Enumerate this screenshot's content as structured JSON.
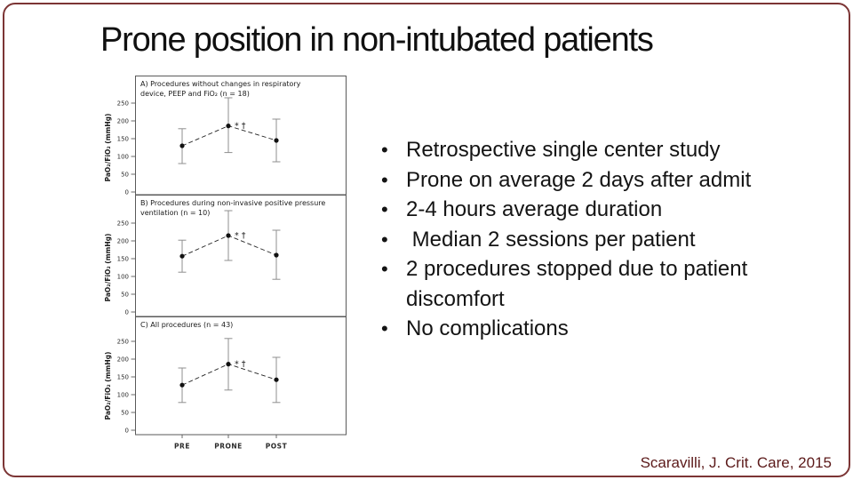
{
  "slide": {
    "title": "Prone position in non-intubated patients",
    "citation": "Scaravilli, J. Crit. Care, 2015",
    "accent_color": "#7c3535",
    "bullet_char": "•"
  },
  "bullets": [
    "Retrospective single center study",
    "Prone on average 2 days after admit",
    "2-4 hours average duration",
    " Median 2 sessions per patient",
    "2 procedures stopped due to patient discomfort",
    "No complications"
  ],
  "chart_data": [
    {
      "type": "line",
      "panel": "A",
      "title_lines": [
        "A) Procedures without changes in respiratory",
        "device, PEEP and FiO₂ (n = 18)"
      ],
      "ylabel": "PaO₂/FiO₂ (mmHg)",
      "categories": [
        "PRE",
        "PRONE",
        "POST"
      ],
      "series": [
        {
          "name": "PaO2/FiO2 mean",
          "values": [
            130,
            186,
            145
          ]
        }
      ],
      "ci_low": [
        80,
        111,
        85
      ],
      "ci_high": [
        178,
        265,
        205
      ],
      "annotation": "* †",
      "annotation_category": "PRONE",
      "ylim": [
        0,
        250
      ],
      "yticks": [
        0,
        50,
        100,
        150,
        200,
        250
      ],
      "grid": false,
      "legend": "none",
      "show_x_labels": false
    },
    {
      "type": "line",
      "panel": "B",
      "title_lines": [
        "B) Procedures during non-invasive positive pressure",
        "ventilation (n = 10)"
      ],
      "ylabel": "PaO₂/FiO₂ (mmHg)",
      "categories": [
        "PRE",
        "PRONE",
        "POST"
      ],
      "series": [
        {
          "name": "PaO2/FiO2 mean",
          "values": [
            157,
            215,
            160
          ]
        }
      ],
      "ci_low": [
        112,
        145,
        92
      ],
      "ci_high": [
        202,
        285,
        230
      ],
      "annotation": "* †",
      "annotation_category": "PRONE",
      "ylim": [
        0,
        250
      ],
      "yticks": [
        0,
        50,
        100,
        150,
        200,
        250
      ],
      "grid": false,
      "legend": "none",
      "show_x_labels": false
    },
    {
      "type": "line",
      "panel": "C",
      "title_lines": [
        "C) All procedures (n = 43)"
      ],
      "ylabel": "PaO₂/FiO₂ (mmHg)",
      "categories": [
        "PRE",
        "PRONE",
        "POST"
      ],
      "series": [
        {
          "name": "PaO2/FiO2 mean",
          "values": [
            127,
            186,
            142
          ]
        }
      ],
      "ci_low": [
        78,
        113,
        78
      ],
      "ci_high": [
        175,
        258,
        205
      ],
      "annotation": "* †",
      "annotation_category": "PRONE",
      "ylim": [
        0,
        250
      ],
      "yticks": [
        0,
        50,
        100,
        150,
        200,
        250
      ],
      "grid": false,
      "legend": "none",
      "show_x_labels": true
    }
  ]
}
